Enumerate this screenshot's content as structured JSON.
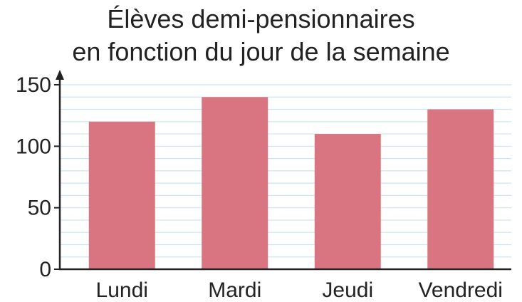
{
  "chart_data": {
    "type": "bar",
    "title_lines": [
      "Élèves demi-pensionnaires",
      "en fonction du jour de la semaine"
    ],
    "categories": [
      "Lundi",
      "Mardi",
      "Jeudi",
      "Vendredi"
    ],
    "values": [
      120,
      140,
      110,
      130
    ],
    "y_ticks": [
      0,
      50,
      100,
      150
    ],
    "ylim": [
      0,
      150
    ],
    "grid": true,
    "grid_minor_step": 10,
    "colors": {
      "bar": "#d97580",
      "grid": "#c9e6f2",
      "axis": "#222222"
    }
  }
}
